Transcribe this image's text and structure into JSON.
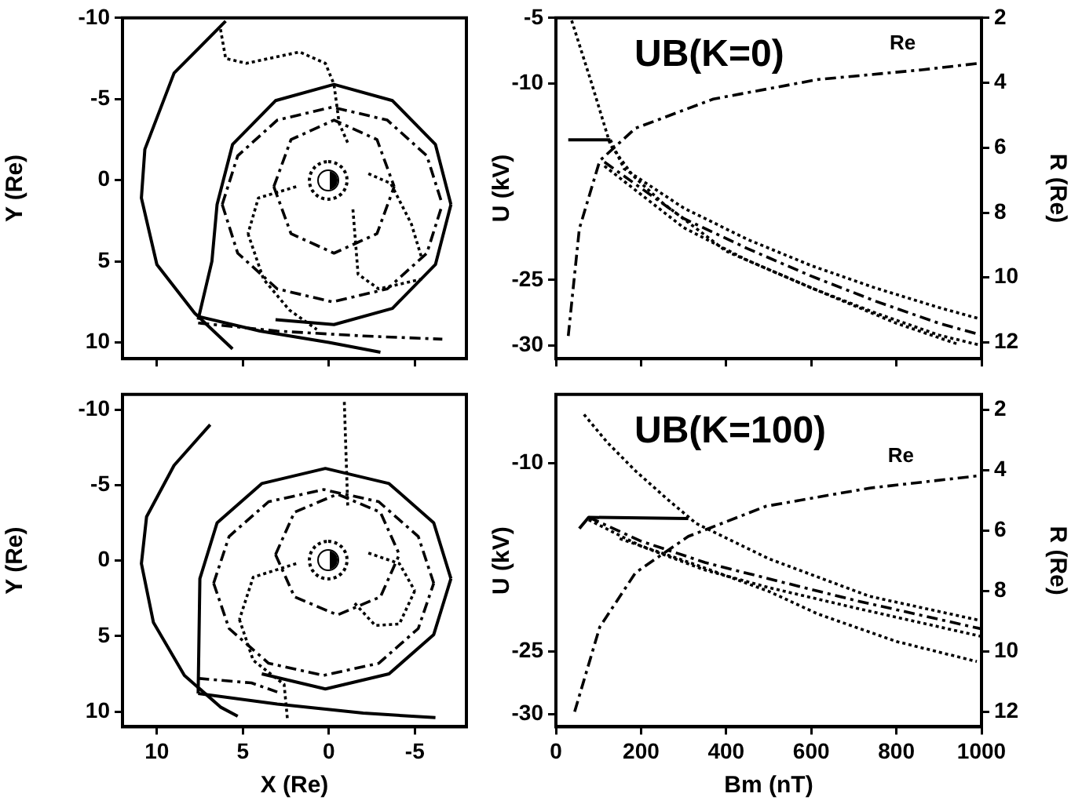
{
  "chart_data": [
    {
      "type": "line",
      "ylabel": "Y (Re)",
      "xlim": [
        12,
        -8
      ],
      "xticks": [
        10,
        5,
        0,
        -5
      ],
      "ylim": [
        11,
        -10
      ],
      "yticks": [
        -10,
        -5,
        0,
        5,
        10
      ],
      "tick_labels": "y",
      "series": [
        {
          "color": "#000000",
          "line_style": "solid",
          "x": [
            6.0,
            9.0,
            10.7,
            10.9,
            10.0,
            7.8,
            5.6
          ],
          "values": [
            -9.8,
            -6.6,
            -1.9,
            1.1,
            5.2,
            8.2,
            10.4
          ]
        },
        {
          "color": "#000000",
          "line_style": "solid",
          "x": [
            7.6,
            6.8,
            6.5,
            5.6,
            3.1,
            -0.3,
            -3.7,
            -6.2,
            -7.1
          ],
          "values": [
            8.6,
            5.0,
            1.5,
            -2.2,
            -4.9,
            -5.9,
            -4.9,
            -2.2,
            1.5
          ]
        },
        {
          "color": "#000000",
          "line_style": "solid",
          "x": [
            -7.1,
            -6.2,
            -3.7,
            -0.3,
            3.1
          ],
          "values": [
            1.5,
            5.2,
            7.9,
            8.9,
            8.6
          ]
        },
        {
          "color": "#000000",
          "line_style": "solid",
          "x": [
            7.6,
            4,
            0,
            -3
          ],
          "values": [
            8.4,
            9.3,
            10.0,
            10.6
          ]
        },
        {
          "color": "#000000",
          "line_style": "dashed",
          "x": [
            6.2,
            5.3,
            3.0,
            -0.2,
            -3.4,
            -5.7,
            -6.6
          ],
          "values": [
            1.5,
            -1.5,
            -3.7,
            -4.5,
            -3.7,
            -1.5,
            1.5
          ]
        },
        {
          "color": "#000000",
          "line_style": "dashed",
          "x": [
            6.2,
            5.3,
            3.0,
            -0.2,
            -3.4,
            -5.7,
            -6.6
          ],
          "values": [
            1.5,
            4.5,
            6.7,
            7.5,
            6.7,
            4.5,
            1.5
          ]
        },
        {
          "color": "#000000",
          "line_style": "dashed",
          "x": [
            7.6,
            3,
            -2,
            -6.6
          ],
          "values": [
            8.8,
            9.3,
            9.6,
            9.8
          ]
        },
        {
          "color": "#000000",
          "line_style": "dashed",
          "x": [
            3.2,
            2.2,
            -0.3,
            -2.8,
            -3.8
          ],
          "values": [
            0.4,
            -2.5,
            -3.7,
            -2.5,
            0.4
          ]
        },
        {
          "color": "#000000",
          "line_style": "dashed",
          "x": [
            3.2,
            2.2,
            -0.3,
            -2.8,
            -3.8
          ],
          "values": [
            0.4,
            3.3,
            4.5,
            3.3,
            0.4
          ]
        },
        {
          "color": "#000000",
          "line_style": "dotted",
          "x": [
            6.3,
            6.0,
            4.8,
            1.7,
            0.2,
            -0.3,
            -0.6,
            -1.1
          ],
          "values": [
            -9.3,
            -7.5,
            -7.2,
            -7.9,
            -7.2,
            -5.9,
            -3.5,
            -2.3
          ]
        },
        {
          "color": "#000000",
          "line_style": "dotted",
          "x": [
            -1.4,
            -1.7,
            -2.9,
            -5.4
          ],
          "values": [
            1.8,
            5.8,
            6.7,
            6.1
          ]
        },
        {
          "color": "#000000",
          "line_style": "dotted",
          "x": [
            1.9,
            4.1,
            4.7
          ],
          "values": [
            0.4,
            1.1,
            3.3
          ]
        },
        {
          "color": "#000000",
          "line_style": "dotted",
          "x": [
            4.7,
            3.8,
            2.3,
            0.7
          ],
          "values": [
            3.3,
            6.1,
            8.0,
            9.2
          ]
        },
        {
          "color": "#000000",
          "line_style": "dotted",
          "x": [
            -2.3,
            -3.6,
            -4.8,
            -5.4
          ],
          "values": [
            -0.4,
            0.2,
            2.7,
            4.8
          ]
        }
      ]
    },
    {
      "type": "line",
      "title": "UB(K=0)",
      "ylabel": "U (kV)",
      "y2label": "R (Re)",
      "xlim": [
        0,
        1000
      ],
      "xticks": [
        0,
        200,
        400,
        600,
        800,
        1000
      ],
      "ylim": [
        -31,
        -5
      ],
      "yticks": [
        -5,
        -10,
        -25,
        -30
      ],
      "y2lim": [
        12.5,
        2
      ],
      "y2ticks": [
        2,
        4,
        6,
        8,
        10,
        12
      ],
      "tick_labels": "y",
      "series": [
        {
          "color": "#000000",
          "line_style": "solid",
          "x": [
            29,
            128
          ],
          "values": [
            -14.3,
            -14.3
          ]
        },
        {
          "color": "#000000",
          "line_style": "dashed",
          "x": [
            114,
            300,
            450,
            600,
            750,
            900,
            1000
          ],
          "values": [
            -16,
            -20.3,
            -22.6,
            -24.7,
            -26.6,
            -28.3,
            -29.2
          ]
        },
        {
          "color": "#000000",
          "line_style": "dotted",
          "x": [
            114,
            300,
            450,
            600,
            750,
            900,
            1000
          ],
          "values": [
            -16.3,
            -21,
            -23.5,
            -25.6,
            -27.5,
            -29.2,
            -30
          ]
        },
        {
          "color": "#000000",
          "line_style": "dotted",
          "x": [
            128,
            160,
            300,
            450,
            600,
            750,
            900,
            1000
          ],
          "values": [
            -14.3,
            -16.5,
            -19.5,
            -21.9,
            -23.9,
            -25.6,
            -27.1,
            -28
          ]
        },
        {
          "color": "#000000",
          "line_style": "dotted",
          "x": [
            37,
            84,
            128,
            180,
            250,
            400,
            615,
            800,
            945
          ],
          "values": [
            -5.2,
            -10,
            -14.7,
            -17,
            -19.1,
            -22.8,
            -25.8,
            -28.3,
            -29.9
          ]
        },
        {
          "name": "Re",
          "color": "#000000",
          "line_style": "dashed",
          "axis": "y2",
          "x": [
            29,
            55,
            103,
            187,
            370,
            615,
            860,
            993
          ],
          "values": [
            11.8,
            8.5,
            6.4,
            5.4,
            4.5,
            3.9,
            3.6,
            3.4
          ]
        }
      ]
    },
    {
      "type": "line",
      "xlabel": "X (Re)",
      "ylabel": "Y (Re)",
      "xlim": [
        12,
        -8
      ],
      "xticks": [
        10,
        5,
        0,
        -5
      ],
      "ylim": [
        11,
        -11
      ],
      "yticks": [
        -10,
        -5,
        0,
        5,
        10
      ],
      "series": [
        {
          "color": "#000000",
          "line_style": "solid",
          "x": [
            6.9,
            9.0,
            10.6,
            10.9,
            10.2,
            8.4,
            6.3,
            5.3
          ],
          "values": [
            -9.0,
            -6.3,
            -2.9,
            0.2,
            4.1,
            7.6,
            9.7,
            10.3
          ]
        },
        {
          "color": "#000000",
          "line_style": "solid",
          "x": [
            7.6,
            7.5,
            6.5,
            3.9,
            0.2,
            -3.5,
            -6.1,
            -7.1
          ],
          "values": [
            8.8,
            1.2,
            -2.5,
            -5.1,
            -6.1,
            -5.1,
            -2.5,
            1.2
          ]
        },
        {
          "color": "#000000",
          "line_style": "solid",
          "x": [
            -7.1,
            -6.1,
            -3.5,
            0.2,
            3.9
          ],
          "values": [
            1.2,
            4.9,
            7.5,
            8.5,
            7.5
          ]
        },
        {
          "color": "#000000",
          "line_style": "solid",
          "x": [
            7.6,
            3,
            -2,
            -6.2
          ],
          "values": [
            8.8,
            9.5,
            10.1,
            10.4
          ]
        },
        {
          "color": "#000000",
          "line_style": "dashed",
          "x": [
            6.7,
            5.8,
            3.5,
            0.3,
            -2.9,
            -5.2,
            -6.1
          ],
          "values": [
            1.5,
            -1.6,
            -3.9,
            -4.7,
            -3.9,
            -1.6,
            1.5
          ]
        },
        {
          "color": "#000000",
          "line_style": "dashed",
          "x": [
            6.7,
            5.8,
            3.5,
            0.3,
            -2.9,
            -5.2,
            -6.1
          ],
          "values": [
            1.5,
            4.5,
            6.8,
            7.6,
            6.8,
            4.5,
            1.5
          ]
        },
        {
          "color": "#000000",
          "line_style": "dashed",
          "x": [
            7.6,
            4.5,
            3
          ],
          "values": [
            7.8,
            8.1,
            8.7
          ]
        },
        {
          "color": "#000000",
          "line_style": "dashed",
          "x": [
            3.1,
            2.0,
            -0.5,
            -3.0,
            -4.1
          ],
          "values": [
            -0.4,
            -3.2,
            -4.4,
            -3.2,
            -0.4
          ]
        },
        {
          "color": "#000000",
          "line_style": "dashed",
          "x": [
            3.1,
            2.0,
            -0.5,
            -3.0,
            -4.1
          ],
          "values": [
            -0.4,
            2.4,
            3.6,
            2.4,
            -0.4
          ]
        },
        {
          "color": "#000000",
          "line_style": "dotted",
          "x": [
            -0.9,
            -1.0,
            -1.1
          ],
          "values": [
            -10.5,
            -7,
            -3.6
          ]
        },
        {
          "color": "#000000",
          "line_style": "dotted",
          "x": [
            1.9,
            4.4,
            5.2
          ],
          "values": [
            0.2,
            1.1,
            3.9
          ]
        },
        {
          "color": "#000000",
          "line_style": "dotted",
          "x": [
            5.2,
            4.4,
            2.6,
            2.4
          ],
          "values": [
            3.9,
            6.6,
            8.2,
            10.6
          ]
        },
        {
          "color": "#000000",
          "line_style": "dotted",
          "x": [
            -2.3,
            -4.1,
            -5.0
          ],
          "values": [
            -0.5,
            0.2,
            2.0
          ]
        },
        {
          "color": "#000000",
          "line_style": "dotted",
          "x": [
            -5.0,
            -4.1,
            -2.7,
            -1.4
          ],
          "values": [
            2.0,
            4.2,
            4.3,
            2.7
          ]
        }
      ]
    },
    {
      "type": "line",
      "title": "UB(K=100)",
      "xlabel": "Bm (nT)",
      "ylabel": "U (kV)",
      "y2label": "R (Re)",
      "xlim": [
        0,
        1000
      ],
      "xticks": [
        0,
        200,
        400,
        600,
        800,
        1000
      ],
      "ylim": [
        -31,
        -4.5
      ],
      "yticks": [
        -10,
        -25,
        -30
      ],
      "y2lim": [
        12.5,
        1.5
      ],
      "y2ticks": [
        2,
        4,
        6,
        8,
        10,
        12
      ],
      "series": [
        {
          "color": "#000000",
          "line_style": "solid",
          "x": [
            55,
            77,
            311
          ],
          "values": [
            -15.2,
            -14.3,
            -14.4
          ]
        },
        {
          "color": "#000000",
          "line_style": "dashed",
          "x": [
            77,
            200,
            350,
            500,
            700,
            1000
          ],
          "values": [
            -14.3,
            -16.2,
            -17.9,
            -19.2,
            -20.9,
            -23.2
          ]
        },
        {
          "color": "#000000",
          "line_style": "dotted",
          "x": [
            77,
            200,
            350,
            500,
            700,
            1000
          ],
          "values": [
            -14.5,
            -16.6,
            -18.5,
            -19.9,
            -21.5,
            -23.8
          ]
        },
        {
          "color": "#000000",
          "line_style": "dotted",
          "x": [
            150,
            322,
            500,
            615,
            800,
            989
          ],
          "values": [
            -16,
            -18,
            -20.2,
            -22,
            -24.2,
            -25.8
          ]
        },
        {
          "color": "#000000",
          "line_style": "dotted",
          "x": [
            66,
            120,
            187,
            260,
            330,
            500,
            737,
            993
          ],
          "values": [
            -6.1,
            -8.3,
            -10.6,
            -12.8,
            -14.8,
            -17.6,
            -20.6,
            -22.5
          ]
        },
        {
          "name": "Re",
          "color": "#000000",
          "line_style": "dashed",
          "axis": "y2",
          "x": [
            44,
            103,
            187,
            311,
            494,
            737,
            989
          ],
          "values": [
            12,
            9.2,
            7.4,
            6.2,
            5.2,
            4.6,
            4.2
          ]
        }
      ]
    }
  ]
}
